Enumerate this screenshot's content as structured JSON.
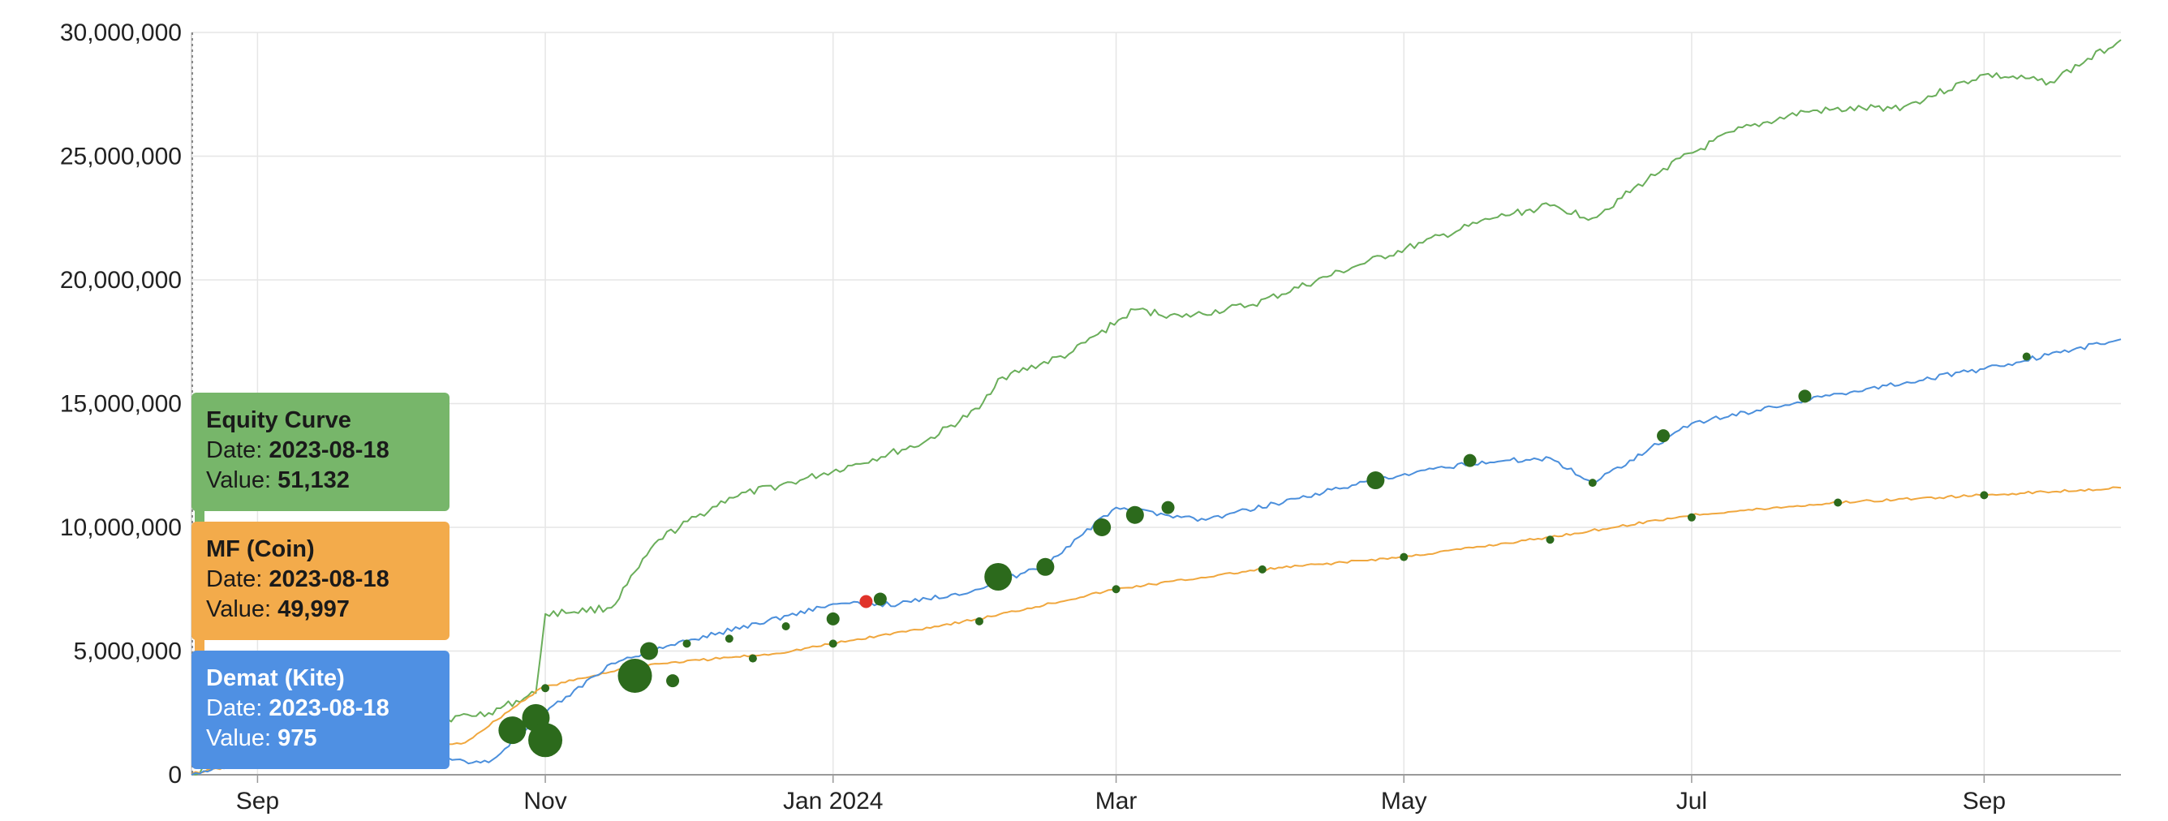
{
  "chart_data": {
    "type": "line",
    "x_ticks": [
      "Sep",
      "Nov",
      "Jan 2024",
      "Mar",
      "May",
      "Jul",
      "Sep"
    ],
    "y_ticks": [
      "0",
      "5,000,000",
      "10,000,000",
      "15,000,000",
      "20,000,000",
      "25,000,000",
      "30,000,000"
    ],
    "ylim": [
      0,
      30000000
    ],
    "xlim": [
      "2023-08-18",
      "2024-09-30"
    ],
    "grid": true,
    "series": [
      {
        "name": "Equity Curve",
        "color": "#6aae5a",
        "points": [
          [
            "2023-08-18",
            51132
          ],
          [
            "2023-09-05",
            1450000
          ],
          [
            "2023-09-20",
            1800000
          ],
          [
            "2023-10-05",
            2100000
          ],
          [
            "2023-10-20",
            2500000
          ],
          [
            "2023-10-30",
            3300000
          ],
          [
            "2023-11-01",
            6500000
          ],
          [
            "2023-11-15",
            6750000
          ],
          [
            "2023-11-25",
            9500000
          ],
          [
            "2023-12-10",
            11200000
          ],
          [
            "2023-12-25",
            11900000
          ],
          [
            "2024-01-05",
            12500000
          ],
          [
            "2024-01-20",
            13400000
          ],
          [
            "2024-02-01",
            14800000
          ],
          [
            "2024-02-05",
            16000000
          ],
          [
            "2024-02-20",
            17000000
          ],
          [
            "2024-03-05",
            18800000
          ],
          [
            "2024-03-15",
            18500000
          ],
          [
            "2024-03-30",
            19000000
          ],
          [
            "2024-04-20",
            20500000
          ],
          [
            "2024-05-05",
            21500000
          ],
          [
            "2024-05-20",
            22500000
          ],
          [
            "2024-06-01",
            23000000
          ],
          [
            "2024-06-10",
            22500000
          ],
          [
            "2024-06-25",
            24500000
          ],
          [
            "2024-07-10",
            26000000
          ],
          [
            "2024-07-25",
            26800000
          ],
          [
            "2024-08-15",
            27000000
          ],
          [
            "2024-09-01",
            28300000
          ],
          [
            "2024-09-15",
            28000000
          ],
          [
            "2024-09-30",
            29700000
          ]
        ]
      },
      {
        "name": "MF (Coin)",
        "color": "#f0a73e",
        "points": [
          [
            "2023-08-18",
            49997
          ],
          [
            "2023-09-05",
            650000
          ],
          [
            "2023-10-01",
            900000
          ],
          [
            "2023-10-15",
            1300000
          ],
          [
            "2023-10-31",
            3500000
          ],
          [
            "2023-11-20",
            4400000
          ],
          [
            "2023-12-20",
            4900000
          ],
          [
            "2024-01-01",
            5300000
          ],
          [
            "2024-02-01",
            6300000
          ],
          [
            "2024-03-01",
            7500000
          ],
          [
            "2024-04-01",
            8300000
          ],
          [
            "2024-05-01",
            8800000
          ],
          [
            "2024-06-01",
            9600000
          ],
          [
            "2024-07-01",
            10500000
          ],
          [
            "2024-08-01",
            11000000
          ],
          [
            "2024-09-01",
            11300000
          ],
          [
            "2024-09-30",
            11600000
          ]
        ]
      },
      {
        "name": "Demat (Kite)",
        "color": "#4b8fdc",
        "points": [
          [
            "2023-08-18",
            975
          ],
          [
            "2023-09-05",
            900000
          ],
          [
            "2023-10-01",
            700000
          ],
          [
            "2023-10-20",
            500000
          ],
          [
            "2023-11-01",
            2500000
          ],
          [
            "2023-11-15",
            4500000
          ],
          [
            "2023-12-01",
            5400000
          ],
          [
            "2024-01-01",
            6900000
          ],
          [
            "2024-01-15",
            6900000
          ],
          [
            "2024-02-01",
            7500000
          ],
          [
            "2024-02-15",
            8500000
          ],
          [
            "2024-03-01",
            10800000
          ],
          [
            "2024-03-20",
            10300000
          ],
          [
            "2024-04-20",
            11700000
          ],
          [
            "2024-05-15",
            12600000
          ],
          [
            "2024-06-01",
            12800000
          ],
          [
            "2024-06-10",
            11800000
          ],
          [
            "2024-07-01",
            14200000
          ],
          [
            "2024-08-01",
            15400000
          ],
          [
            "2024-09-01",
            16400000
          ],
          [
            "2024-09-30",
            17600000
          ]
        ]
      }
    ],
    "markers": {
      "color": "#2c6a1c",
      "highlight_color": "#e0332a",
      "points": [
        [
          "2023-10-25",
          1800000,
          "lg"
        ],
        [
          "2023-10-30",
          2300000,
          "lg"
        ],
        [
          "2023-11-01",
          1400000,
          "xl"
        ],
        [
          "2023-11-20",
          4000000,
          "xl"
        ],
        [
          "2023-11-23",
          5000000,
          "md"
        ],
        [
          "2023-11-28",
          3800000,
          "sm"
        ],
        [
          "2023-12-01",
          5300000,
          "xs"
        ],
        [
          "2023-12-10",
          5500000,
          "xs"
        ],
        [
          "2023-12-22",
          6000000,
          "xs"
        ],
        [
          "2024-01-01",
          6300000,
          "sm"
        ],
        [
          "2024-01-08",
          7000000,
          "sm",
          "red"
        ],
        [
          "2024-01-11",
          7100000,
          "sm"
        ],
        [
          "2024-02-05",
          8000000,
          "lg"
        ],
        [
          "2024-02-15",
          8400000,
          "md"
        ],
        [
          "2024-02-27",
          10000000,
          "md"
        ],
        [
          "2024-03-05",
          10500000,
          "md"
        ],
        [
          "2024-03-12",
          10800000,
          "sm"
        ],
        [
          "2024-04-25",
          11900000,
          "md"
        ],
        [
          "2024-05-15",
          12700000,
          "sm"
        ],
        [
          "2024-06-10",
          11800000,
          "xs"
        ],
        [
          "2024-06-25",
          13700000,
          "sm"
        ],
        [
          "2024-07-25",
          15300000,
          "sm"
        ],
        [
          "2024-09-10",
          16900000,
          "xs"
        ],
        [
          "2024-01-01",
          5300000,
          "xs"
        ],
        [
          "2024-02-01",
          6200000,
          "xs"
        ],
        [
          "2024-03-01",
          7500000,
          "xs"
        ],
        [
          "2024-04-01",
          8300000,
          "xs"
        ],
        [
          "2024-05-01",
          8800000,
          "xs"
        ],
        [
          "2024-06-01",
          9500000,
          "xs"
        ],
        [
          "2024-07-01",
          10400000,
          "xs"
        ],
        [
          "2024-08-01",
          11000000,
          "xs"
        ],
        [
          "2024-09-01",
          11300000,
          "xs"
        ],
        [
          "2023-11-01",
          3500000,
          "xs"
        ],
        [
          "2023-12-15",
          4700000,
          "xs"
        ]
      ]
    }
  },
  "tooltips": [
    {
      "series": "Equity Curve",
      "date_label": "Date: ",
      "date": "2023-08-18",
      "value_label": "Value: ",
      "value": "51,132",
      "color": "#77b66a",
      "text_color": "#1a1a1a"
    },
    {
      "series": "MF (Coin)",
      "date_label": "Date: ",
      "date": "2023-08-18",
      "value_label": "Value: ",
      "value": "49,997",
      "color": "#f3ab4b",
      "text_color": "#1a1a1a"
    },
    {
      "series": "Demat (Kite)",
      "date_label": "Date: ",
      "date": "2023-08-18",
      "value_label": "Value: ",
      "value": "975",
      "color": "#4f90e3",
      "text_color": "#ffffff"
    }
  ]
}
